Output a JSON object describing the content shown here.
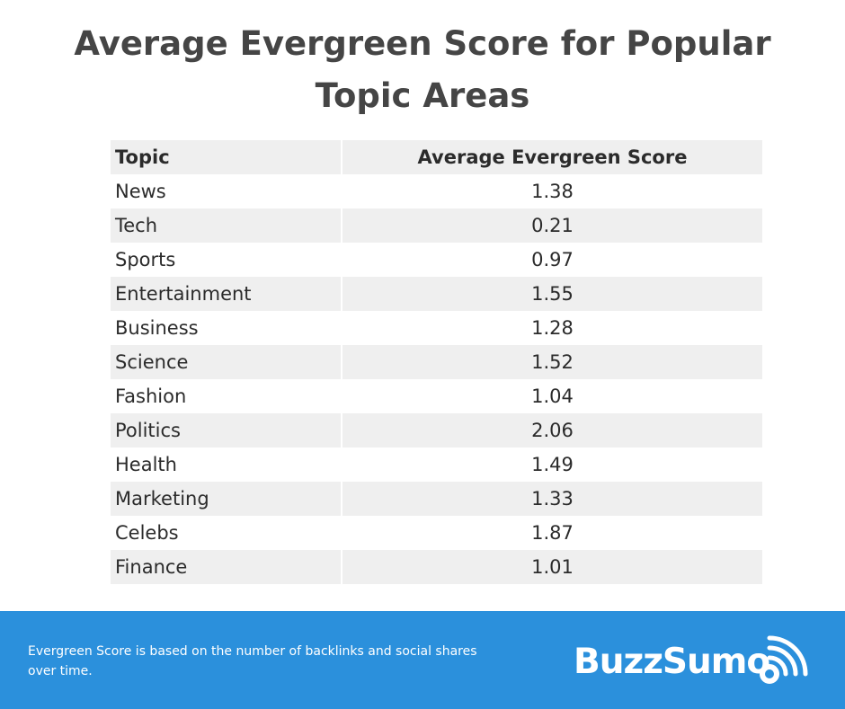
{
  "chart_data": {
    "type": "table",
    "title": "Average Evergreen Score for Popular Topic Areas",
    "columns": [
      "Topic",
      "Average Evergreen Score"
    ],
    "rows": [
      {
        "topic": "News",
        "score": "1.38"
      },
      {
        "topic": "Tech",
        "score": "0.21"
      },
      {
        "topic": "Sports",
        "score": "0.97"
      },
      {
        "topic": "Entertainment",
        "score": "1.55"
      },
      {
        "topic": "Business",
        "score": "1.28"
      },
      {
        "topic": "Science",
        "score": "1.52"
      },
      {
        "topic": "Fashion",
        "score": "1.04"
      },
      {
        "topic": "Politics",
        "score": "2.06"
      },
      {
        "topic": "Health",
        "score": "1.49"
      },
      {
        "topic": "Marketing",
        "score": "1.33"
      },
      {
        "topic": "Celebs",
        "score": "1.87"
      },
      {
        "topic": "Finance",
        "score": "1.01"
      }
    ]
  },
  "footer": {
    "note": "Evergreen Score is based on the number of backlinks and social shares over time.",
    "logo_text": "BuzzSumo",
    "logo_icon": "signal-icon",
    "background_color": "#2b90dc"
  },
  "colors": {
    "title": "#454545",
    "row_shade": "#efefef",
    "text": "#2b2b2b"
  }
}
